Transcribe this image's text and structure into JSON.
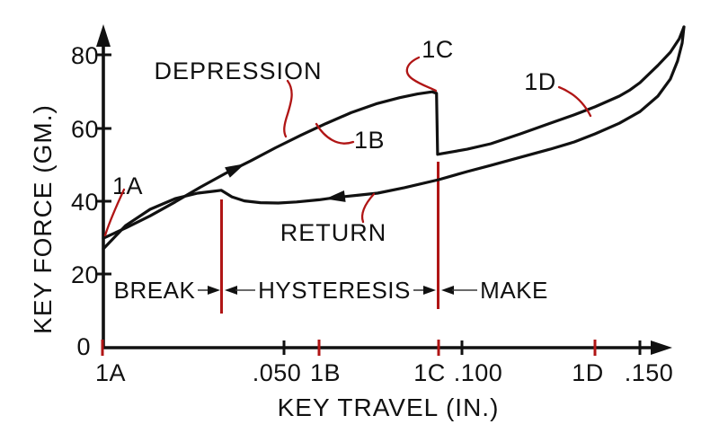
{
  "colors": {
    "curve": "#111111",
    "annotation_red": "#b01515",
    "background": "#ffffff",
    "thin_arrow": "#3a3a3a"
  },
  "chart_data": {
    "type": "line",
    "title": "",
    "xlabel": "KEY TRAVEL (IN.)",
    "ylabel": "KEY FORCE (GM.)",
    "xlim": [
      0,
      0.163
    ],
    "ylim": [
      0,
      88
    ],
    "grid": false,
    "legend": "none",
    "x_ticks": {
      "values": [
        0.05,
        0.1,
        0.15
      ],
      "labels": [
        ".050",
        ".100",
        ".150"
      ]
    },
    "y_ticks": {
      "values": [
        0,
        20,
        40,
        60,
        80
      ],
      "labels": [
        "0",
        "20",
        "40",
        "60",
        "80"
      ]
    },
    "key_points": [
      {
        "id": "1A",
        "travel": 0.0
      },
      {
        "id": "1B",
        "travel": 0.06
      },
      {
        "id": "1C",
        "travel": 0.094
      },
      {
        "id": "1D",
        "travel": 0.138
      }
    ],
    "series": [
      {
        "name": "DEPRESSION",
        "points": [
          [
            0.0,
            29.9
          ],
          [
            0.0065,
            32.8
          ],
          [
            0.0131,
            36.0
          ],
          [
            0.0201,
            39.8
          ],
          [
            0.0271,
            43.8
          ],
          [
            0.0342,
            47.6
          ],
          [
            0.0412,
            51.0
          ],
          [
            0.0482,
            54.6
          ],
          [
            0.0553,
            58.0
          ],
          [
            0.0623,
            61.2
          ],
          [
            0.0694,
            64.2
          ],
          [
            0.0764,
            66.6
          ],
          [
            0.083,
            68.3
          ],
          [
            0.088,
            69.3
          ],
          [
            0.0921,
            69.9
          ],
          [
            0.0933,
            69.5
          ],
          [
            0.0936,
            52.8
          ],
          [
            0.1019,
            54.2
          ],
          [
            0.1085,
            55.7
          ],
          [
            0.1168,
            58.4
          ],
          [
            0.1251,
            61.3
          ],
          [
            0.1319,
            63.6
          ],
          [
            0.1377,
            65.8
          ],
          [
            0.1445,
            68.7
          ],
          [
            0.1475,
            70.4
          ],
          [
            0.1503,
            72.4
          ],
          [
            0.1553,
            77.1
          ],
          [
            0.1588,
            80.7
          ],
          [
            0.1613,
            84.4
          ],
          [
            0.1626,
            87.6
          ]
        ]
      },
      {
        "name": "RETURN",
        "points": [
          [
            0.0,
            27.0
          ],
          [
            0.0063,
            33.4
          ],
          [
            0.0131,
            37.8
          ],
          [
            0.0201,
            40.7
          ],
          [
            0.0264,
            42.2
          ],
          [
            0.0314,
            42.8
          ],
          [
            0.033,
            43.0
          ],
          [
            0.036,
            41.2
          ],
          [
            0.0395,
            40.1
          ],
          [
            0.044,
            39.6
          ],
          [
            0.049,
            39.5
          ],
          [
            0.0541,
            39.8
          ],
          [
            0.0604,
            40.4
          ],
          [
            0.0649,
            41.0
          ],
          [
            0.0717,
            41.7
          ],
          [
            0.0768,
            42.2
          ],
          [
            0.0843,
            43.7
          ],
          [
            0.0939,
            45.9
          ],
          [
            0.1019,
            48.1
          ],
          [
            0.1085,
            49.8
          ],
          [
            0.1168,
            52.0
          ],
          [
            0.1251,
            54.2
          ],
          [
            0.1319,
            56.2
          ],
          [
            0.1377,
            58.4
          ],
          [
            0.1445,
            61.3
          ],
          [
            0.1503,
            64.5
          ],
          [
            0.1553,
            68.7
          ],
          [
            0.1588,
            73.4
          ],
          [
            0.1608,
            78.3
          ],
          [
            0.1621,
            83.2
          ],
          [
            0.1626,
            87.6
          ]
        ]
      }
    ],
    "flow_arrows": [
      {
        "series": 0,
        "t": 0.0372,
        "direction": "forward"
      },
      {
        "series": 1,
        "t": 0.0649,
        "direction": "backward"
      }
    ],
    "regions": {
      "break": "BREAK",
      "hysteresis": "HYSTERESIS",
      "make": "MAKE"
    }
  }
}
